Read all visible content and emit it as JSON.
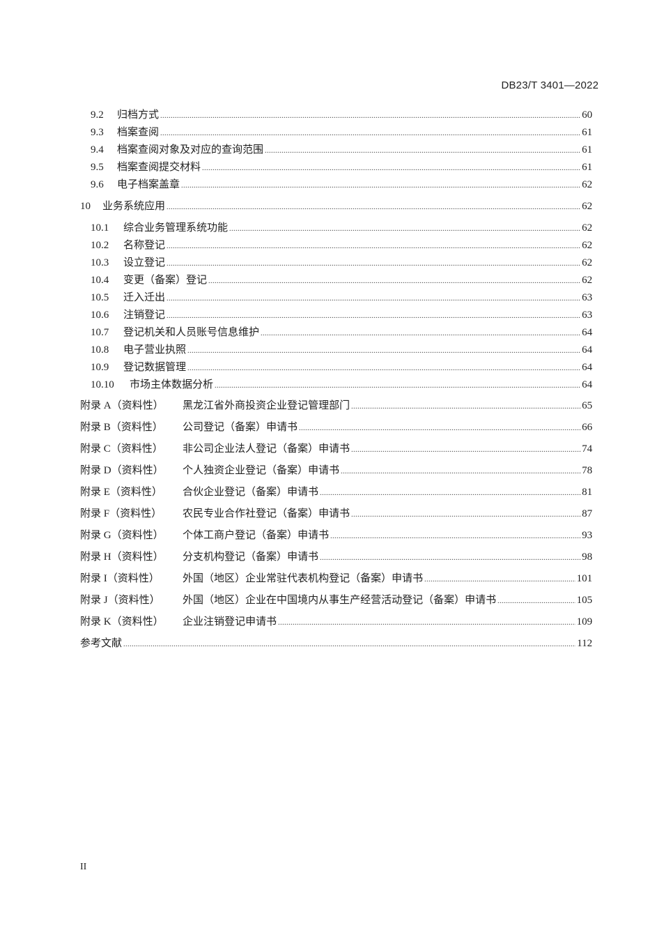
{
  "header": {
    "doc_code": "DB23/T 3401—2022"
  },
  "toc": [
    {
      "num": "9.2",
      "title": "归档方式",
      "page": "60",
      "level": 2
    },
    {
      "num": "9.3",
      "title": "档案查阅",
      "page": "61",
      "level": 2
    },
    {
      "num": "9.4",
      "title": "档案查阅对象及对应的查询范围",
      "page": "61",
      "level": 2
    },
    {
      "num": "9.5",
      "title": "档案查阅提交材料",
      "page": "61",
      "level": 2
    },
    {
      "num": "9.6",
      "title": "电子档案盖章",
      "page": "62",
      "level": 2
    },
    {
      "num": "10",
      "title": "业务系统应用",
      "page": "62",
      "level": 1
    },
    {
      "num": "10.1",
      "title": "综合业务管理系统功能",
      "page": "62",
      "level": 2
    },
    {
      "num": "10.2",
      "title": "名称登记",
      "page": "62",
      "level": 2
    },
    {
      "num": "10.3",
      "title": "设立登记",
      "page": "62",
      "level": 2
    },
    {
      "num": "10.4",
      "title": "变更（备案）登记",
      "page": "62",
      "level": 2
    },
    {
      "num": "10.5",
      "title": "迁入迁出",
      "page": "63",
      "level": 2
    },
    {
      "num": "10.6",
      "title": "注销登记",
      "page": "63",
      "level": 2
    },
    {
      "num": "10.7",
      "title": "登记机关和人员账号信息维护",
      "page": "64",
      "level": 2
    },
    {
      "num": "10.8",
      "title": "电子营业执照",
      "page": "64",
      "level": 2
    },
    {
      "num": "10.9",
      "title": "登记数据管理",
      "page": "64",
      "level": 2
    },
    {
      "num": "10.10",
      "title": "市场主体数据分析",
      "page": "64",
      "level": 2
    },
    {
      "num": "附录 A（资料性）",
      "title": "黑龙江省外商投资企业登记管理部门",
      "page": "65",
      "level": 0
    },
    {
      "num": "附录 B（资料性）",
      "title": "公司登记（备案）申请书",
      "page": "66",
      "level": 0
    },
    {
      "num": "附录 C（资料性）",
      "title": "非公司企业法人登记（备案）申请书",
      "page": "74",
      "level": 0
    },
    {
      "num": "附录 D（资料性）",
      "title": "个人独资企业登记（备案）申请书",
      "page": "78",
      "level": 0
    },
    {
      "num": "附录 E（资料性）",
      "title": "合伙企业登记（备案）申请书",
      "page": "81",
      "level": 0
    },
    {
      "num": "附录 F（资料性）",
      "title": "农民专业合作社登记（备案）申请书",
      "page": "87",
      "level": 0
    },
    {
      "num": "附录 G（资料性）",
      "title": "个体工商户登记（备案）申请书",
      "page": "93",
      "level": 0
    },
    {
      "num": "附录 H（资料性）",
      "title": "分支机构登记（备案）申请书",
      "page": "98",
      "level": 0
    },
    {
      "num": "附录 I（资料性）",
      "title": "外国（地区）企业常驻代表机构登记（备案）申请书",
      "page": "101",
      "level": 0
    },
    {
      "num": "附录 J（资料性）",
      "title": "外国（地区）企业在中国境内从事生产经营活动登记（备案）申请书",
      "page": "105",
      "level": 0
    },
    {
      "num": "附录 K（资料性）",
      "title": "企业注销登记申请书",
      "page": "109",
      "level": 0
    },
    {
      "num": "",
      "title": "参考文献",
      "page": "112",
      "level": 0
    }
  ],
  "footer": {
    "page_number": "II"
  }
}
